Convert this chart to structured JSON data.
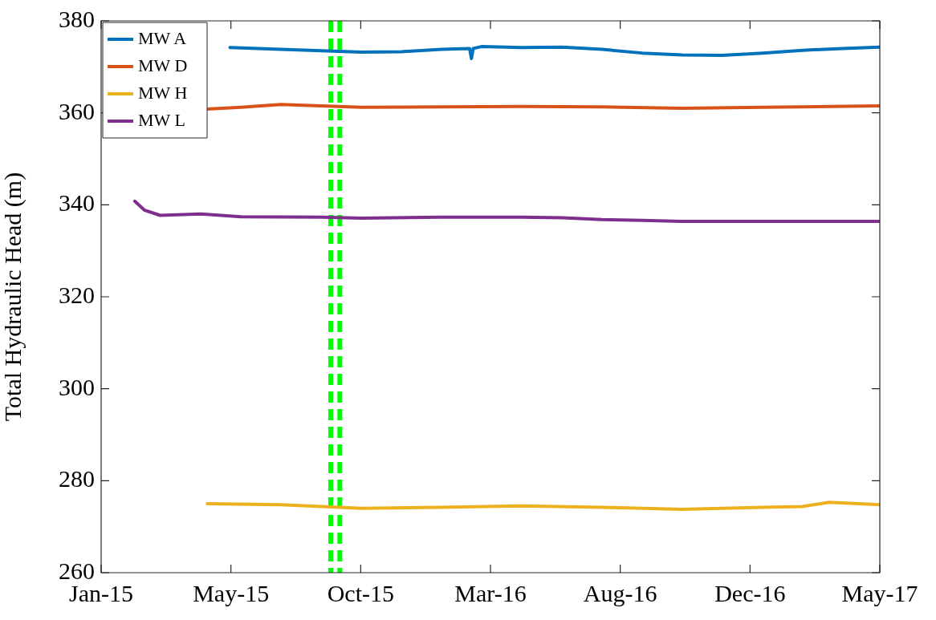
{
  "chart_data": {
    "type": "line",
    "ylabel": "Total Hydraulic Head (m)",
    "xlim": [
      "2015-01-08",
      "2017-05-15"
    ],
    "xticks": [
      {
        "value": "2015-01-08",
        "label": "Jan-15"
      },
      {
        "value": "2015-05-31",
        "label": "May-15"
      },
      {
        "value": "2015-10-21",
        "label": "Oct-15"
      },
      {
        "value": "2016-03-12",
        "label": "Mar-16"
      },
      {
        "value": "2016-08-02",
        "label": "Aug-16"
      },
      {
        "value": "2016-12-23",
        "label": "Dec-16"
      },
      {
        "value": "2017-05-15",
        "label": "May-17"
      }
    ],
    "ylim": [
      260,
      380
    ],
    "yticks": [
      260,
      280,
      300,
      320,
      340,
      360,
      380
    ],
    "grid": false,
    "legend": "top left",
    "marker": "none",
    "line_style": "solid",
    "ref_lines": [
      {
        "axis": "x",
        "value": "2015-09-18",
        "color": "#00ff00",
        "line_style": "dashed"
      },
      {
        "axis": "x",
        "value": "2015-09-28",
        "color": "#00ff00",
        "line_style": "dashed"
      }
    ],
    "series": [
      {
        "name": "MW A",
        "color": "#0072bd",
        "x": [
          "2015-05-30",
          "2015-07-25",
          "2015-10-22",
          "2015-12-05",
          "2016-01-18",
          "2016-02-18",
          "2016-02-20",
          "2016-02-22",
          "2016-03-02",
          "2016-04-15",
          "2016-05-30",
          "2016-07-13",
          "2016-08-26",
          "2016-10-09",
          "2016-11-22",
          "2017-01-06",
          "2017-02-19",
          "2017-04-04",
          "2017-05-15"
        ],
        "values": [
          374.2,
          373.8,
          373.2,
          373.3,
          373.8,
          374.0,
          371.8,
          374.0,
          374.4,
          374.2,
          374.3,
          373.8,
          373.0,
          372.6,
          372.5,
          373.0,
          373.6,
          374.0,
          374.3
        ]
      },
      {
        "name": "MW D",
        "color": "#d95319",
        "x": [
          "2015-05-05",
          "2015-06-11",
          "2015-07-25",
          "2015-09-07",
          "2015-10-22",
          "2016-01-18",
          "2016-04-15",
          "2016-07-13",
          "2016-10-09",
          "2017-01-06",
          "2017-05-15"
        ],
        "values": [
          360.8,
          361.2,
          361.8,
          361.5,
          361.2,
          361.3,
          361.4,
          361.3,
          361.0,
          361.2,
          361.5
        ]
      },
      {
        "name": "MW H",
        "color": "#edb120",
        "x": [
          "2015-05-05",
          "2015-07-25",
          "2015-10-22",
          "2016-01-18",
          "2016-04-15",
          "2016-07-13",
          "2016-10-09",
          "2017-01-06",
          "2017-02-19",
          "2017-03-20",
          "2017-05-15"
        ],
        "values": [
          275.0,
          274.8,
          274.0,
          274.2,
          274.5,
          274.2,
          273.8,
          274.2,
          274.4,
          275.3,
          274.8
        ]
      },
      {
        "name": "MW L",
        "color": "#7e2f8e",
        "x": [
          "2015-02-14",
          "2015-02-25",
          "2015-03-14",
          "2015-04-28",
          "2015-06-11",
          "2015-09-07",
          "2015-10-22",
          "2016-01-18",
          "2016-04-15",
          "2016-05-30",
          "2016-07-13",
          "2016-08-26",
          "2016-10-09",
          "2017-01-06",
          "2017-05-15"
        ],
        "values": [
          340.8,
          338.8,
          337.7,
          338.0,
          337.4,
          337.3,
          337.1,
          337.3,
          337.3,
          337.2,
          336.8,
          336.6,
          336.4,
          336.4,
          336.4
        ]
      }
    ]
  }
}
